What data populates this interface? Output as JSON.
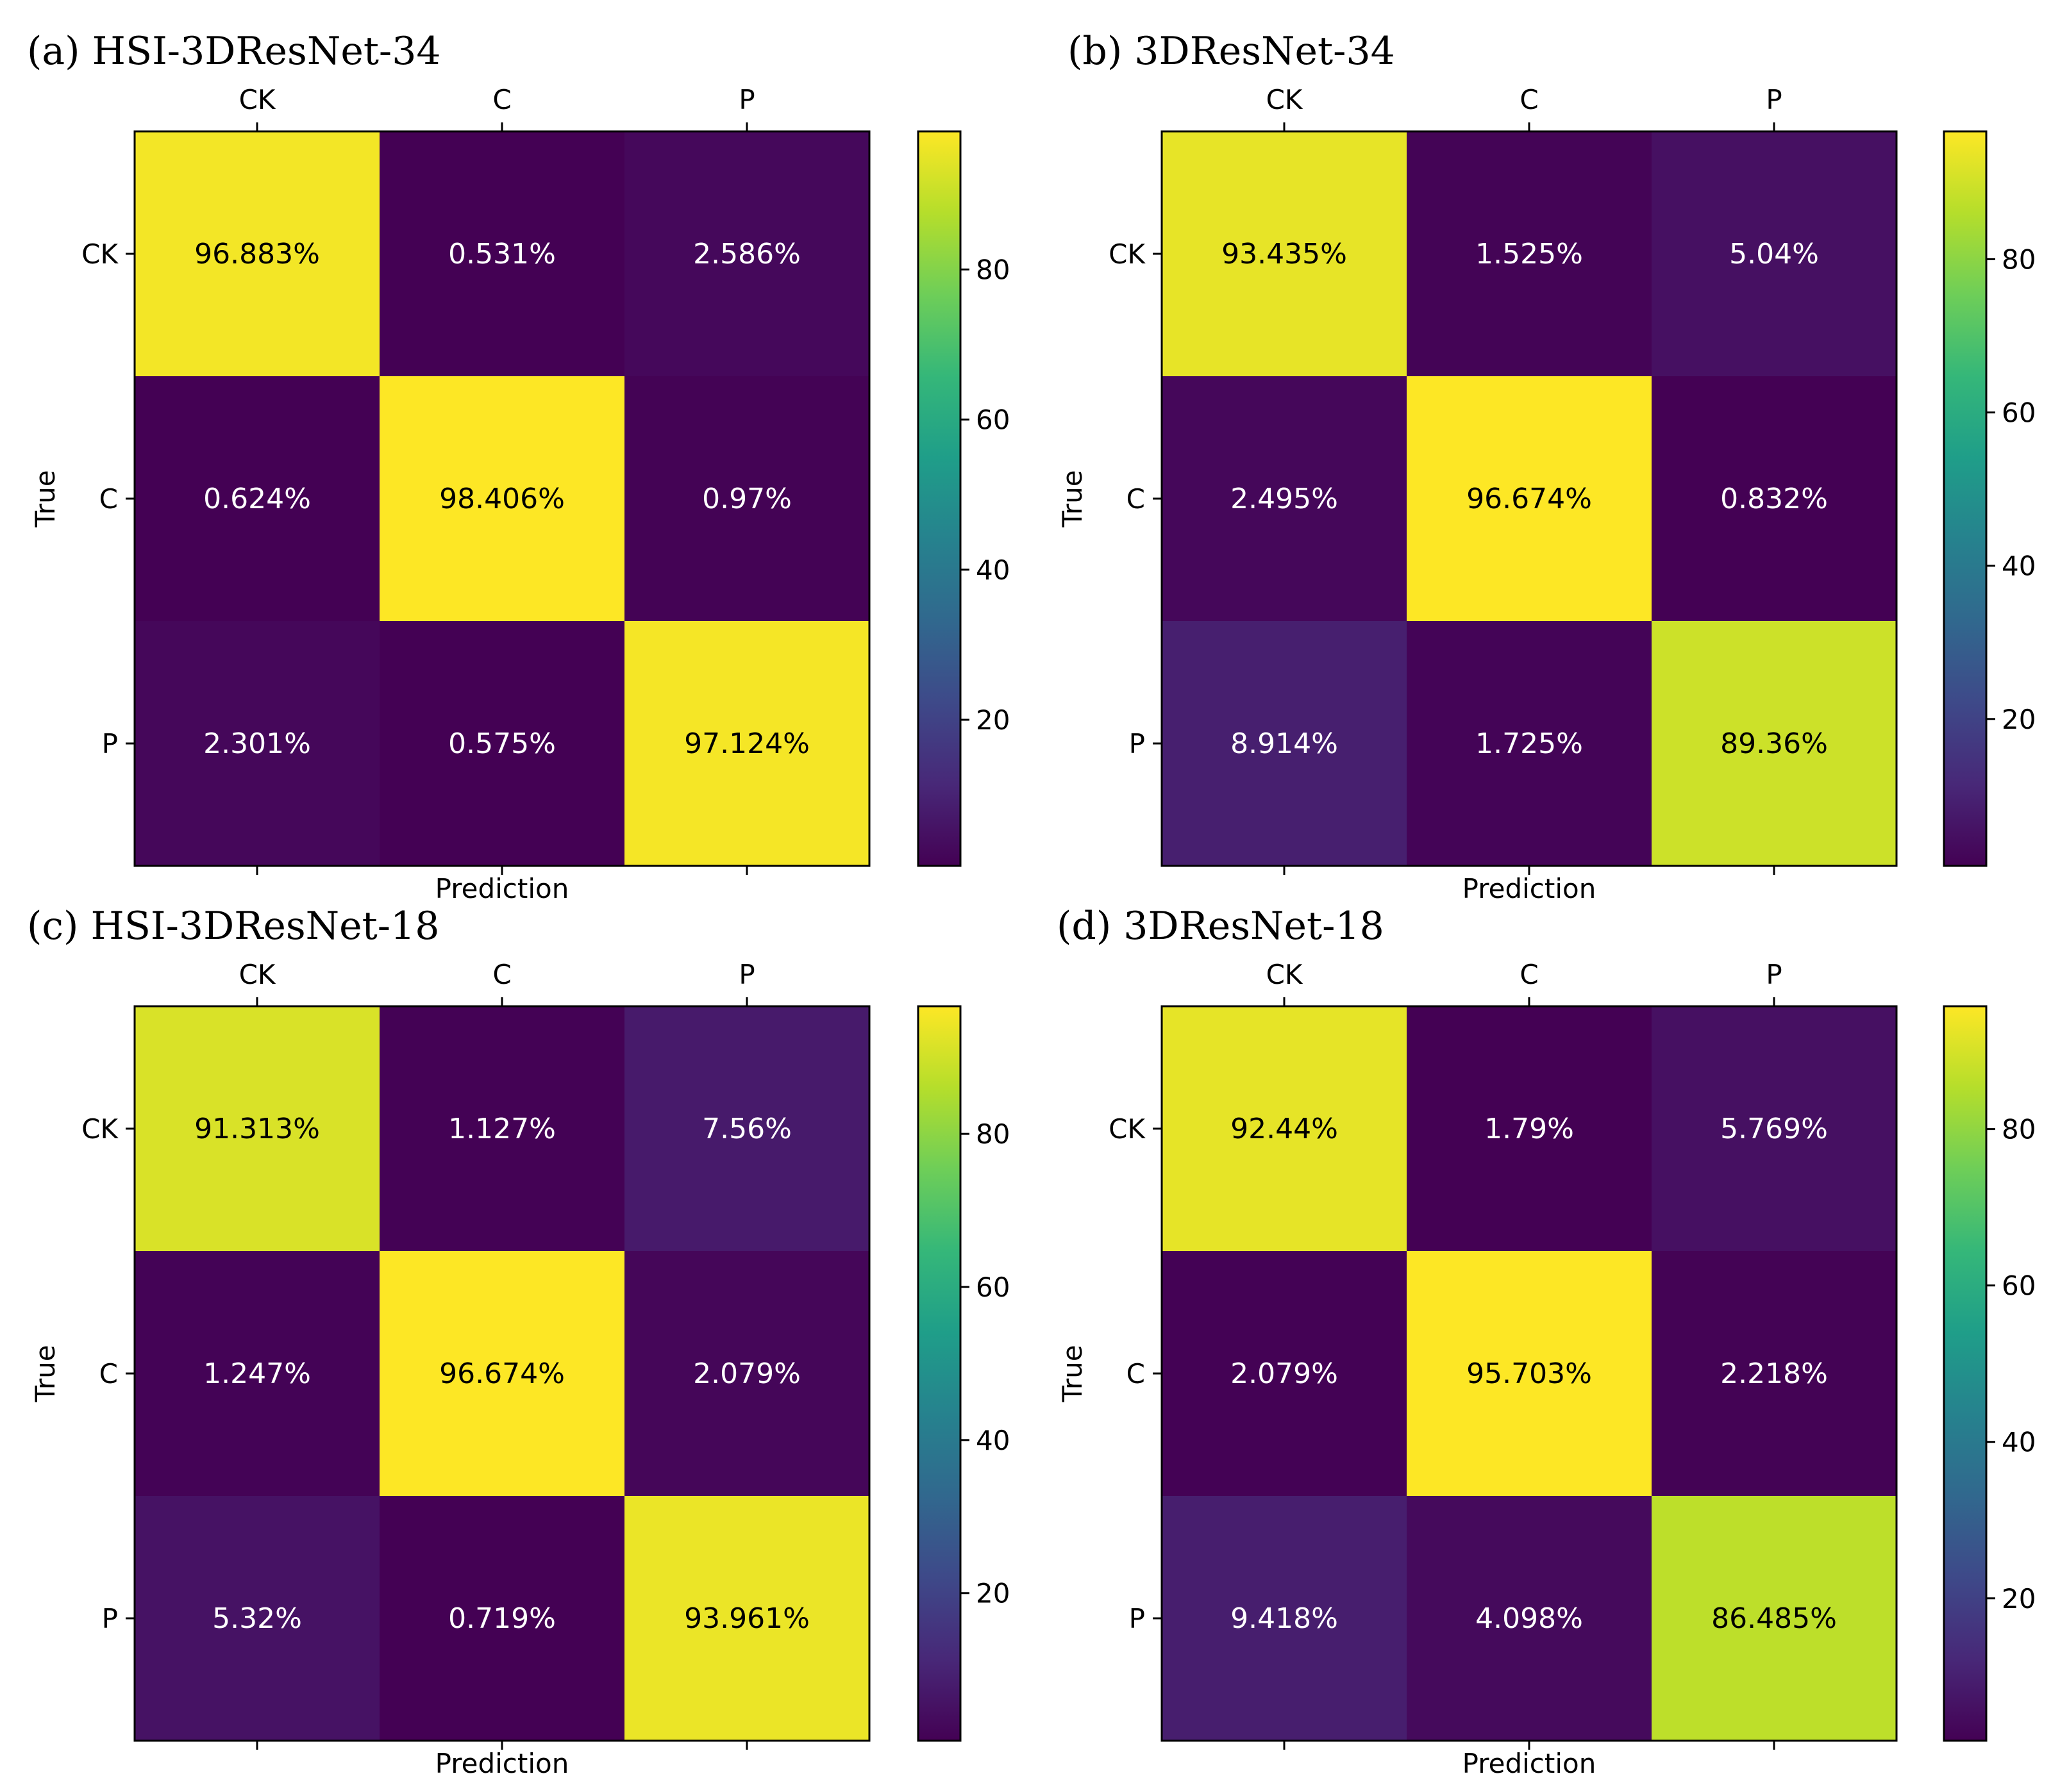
{
  "chart_data": [
    {
      "type": "heatmap",
      "title": "(a) HSI-3DResNet-34",
      "xlabel": "Prediction",
      "ylabel": "True",
      "categories": [
        "CK",
        "C",
        "P"
      ],
      "values": [
        [
          96.883,
          0.531,
          2.586
        ],
        [
          0.624,
          98.406,
          0.97
        ],
        [
          2.301,
          0.575,
          97.124
        ]
      ],
      "labels": [
        [
          "96.883%",
          "0.531%",
          "2.586%"
        ],
        [
          "0.624%",
          "98.406%",
          "0.97%"
        ],
        [
          "2.301%",
          "0.575%",
          "97.124%"
        ]
      ],
      "colorbar": {
        "min": 0.531,
        "max": 98.406,
        "ticks": [
          20,
          40,
          60,
          80
        ]
      }
    },
    {
      "type": "heatmap",
      "title": "(b) 3DResNet-34",
      "xlabel": "Prediction",
      "ylabel": "True",
      "categories": [
        "CK",
        "C",
        "P"
      ],
      "values": [
        [
          93.435,
          1.525,
          5.04
        ],
        [
          2.495,
          96.674,
          0.832
        ],
        [
          8.914,
          1.725,
          89.36
        ]
      ],
      "labels": [
        [
          "93.435%",
          "1.525%",
          "5.04%"
        ],
        [
          "2.495%",
          "96.674%",
          "0.832%"
        ],
        [
          "8.914%",
          "1.725%",
          "89.36%"
        ]
      ],
      "colorbar": {
        "min": 0.832,
        "max": 96.674,
        "ticks": [
          20,
          40,
          60,
          80
        ]
      }
    },
    {
      "type": "heatmap",
      "title": "(c) HSI-3DResNet-18",
      "xlabel": "Prediction",
      "ylabel": "True",
      "categories": [
        "CK",
        "C",
        "P"
      ],
      "values": [
        [
          91.313,
          1.127,
          7.56
        ],
        [
          1.247,
          96.674,
          2.079
        ],
        [
          5.32,
          0.719,
          93.961
        ]
      ],
      "labels": [
        [
          "91.313%",
          "1.127%",
          "7.56%"
        ],
        [
          "1.247%",
          "96.674%",
          "2.079%"
        ],
        [
          "5.32%",
          "0.719%",
          "93.961%"
        ]
      ],
      "colorbar": {
        "min": 0.719,
        "max": 96.674,
        "ticks": [
          20,
          40,
          60,
          80
        ]
      }
    },
    {
      "type": "heatmap",
      "title": "(d) 3DResNet-18",
      "xlabel": "Prediction",
      "ylabel": "True",
      "categories": [
        "CK",
        "C",
        "P"
      ],
      "values": [
        [
          92.44,
          1.79,
          5.769
        ],
        [
          2.079,
          95.703,
          2.218
        ],
        [
          9.418,
          4.098,
          86.485
        ]
      ],
      "labels": [
        [
          "92.44%",
          "1.79%",
          "5.769%"
        ],
        [
          "2.079%",
          "95.703%",
          "2.218%"
        ],
        [
          "9.418%",
          "4.098%",
          "86.485%"
        ]
      ],
      "colorbar": {
        "min": 1.79,
        "max": 95.703,
        "ticks": [
          20,
          40,
          60,
          80
        ]
      }
    }
  ],
  "colors": {
    "viridis": [
      "#440154",
      "#482878",
      "#3e4989",
      "#31688e",
      "#26828e",
      "#1f9e89",
      "#35b779",
      "#6ece58",
      "#b5de2b",
      "#fde725"
    ],
    "light_text": "#ffffff",
    "dark_text": "#000000"
  }
}
